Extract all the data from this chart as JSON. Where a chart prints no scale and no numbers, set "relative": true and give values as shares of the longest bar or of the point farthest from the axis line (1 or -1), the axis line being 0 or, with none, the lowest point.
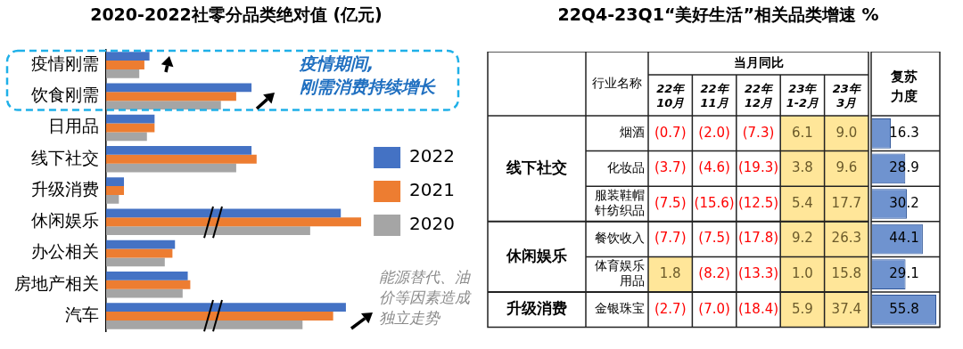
{
  "chart_data": [
    {
      "type": "bar",
      "title": "2020-2022社零分品类绝对值 (亿元)",
      "orientation": "horizontal",
      "relative": true,
      "legend": "right",
      "categories": [
        "疫情刚需",
        "饮食刚需",
        "日用品",
        "线下社交",
        "升级消费",
        "休闲娱乐",
        "办公相关",
        "房地产相关",
        "汽车"
      ],
      "series": [
        {
          "name": "2022",
          "color": "#4472c4",
          "values": [
            0.17,
            0.57,
            0.19,
            0.57,
            0.07,
            0.92,
            0.27,
            0.32,
            0.94
          ]
        },
        {
          "name": "2021",
          "color": "#ed7d31",
          "values": [
            0.15,
            0.51,
            0.19,
            0.59,
            0.07,
            1,
            0.26,
            0.33,
            0.89
          ]
        },
        {
          "name": "2020",
          "color": "#a5a5a5",
          "values": [
            0.13,
            0.45,
            0.16,
            0.51,
            0.05,
            0.8,
            0.23,
            0.3,
            0.77
          ]
        }
      ],
      "annotations": [
        "疫情期间,",
        "刚需消费持续增长",
        "能源替代、油价等因素造成独立走势"
      ]
    },
    {
      "type": "heatmap",
      "title": "22Q4-23Q1“美好生活”相关品类增速 %",
      "xlabel": "当月同比",
      "ylabel": "行业名称",
      "categories": [
        "22年10月",
        "22年11月",
        "22年12月",
        "23年1-2月",
        "23年3月"
      ],
      "y_categories": [
        "烟酒",
        "化妆品",
        "服装鞋帽针纺织品",
        "餐饮收入",
        "体育娱乐用品",
        "金银珠宝"
      ],
      "cells": [
        [
          -0.7,
          -2.0,
          -7.3,
          6.1,
          9.0
        ],
        [
          -3.7,
          -4.6,
          -19.3,
          3.8,
          9.6
        ],
        [
          -7.5,
          -15.6,
          -12.5,
          5.4,
          17.7
        ],
        [
          -7.7,
          -7.5,
          -17.8,
          9.2,
          26.3
        ],
        [
          1.8,
          -8.2,
          -13.3,
          1.0,
          15.8
        ],
        [
          -2.7,
          -7.0,
          -18.4,
          5.9,
          37.4
        ]
      ],
      "cell_labels": [
        [
          "(0.7)",
          "(2.0)",
          "(7.3)",
          "6.1",
          "9.0"
        ],
        [
          "(3.7)",
          "(4.6)",
          "(19.3)",
          "3.8",
          "9.6"
        ],
        [
          "(7.5)",
          "(15.6)",
          "(12.5)",
          "5.4",
          "17.7"
        ],
        [
          "(7.7)",
          "(7.5)",
          "(17.8)",
          "9.2",
          "26.3"
        ],
        [
          "1.8",
          "(8.2)",
          "(13.3)",
          "1.0",
          "15.8"
        ],
        [
          "(2.7)",
          "(7.0)",
          "(18.4)",
          "5.9",
          "37.4"
        ]
      ],
      "annotations": [
        "线下社交",
        "休闲娱乐",
        "升级消费"
      ]
    },
    {
      "type": "bar",
      "title": "复苏力度",
      "orientation": "horizontal",
      "tick_labels": false,
      "data_labels": true,
      "categories": [
        null,
        null,
        null,
        null,
        null,
        null
      ],
      "values": [
        16.3,
        28.9,
        30.2,
        44.1,
        29.1,
        55.8
      ],
      "color": "#6f93cf"
    }
  ]
}
